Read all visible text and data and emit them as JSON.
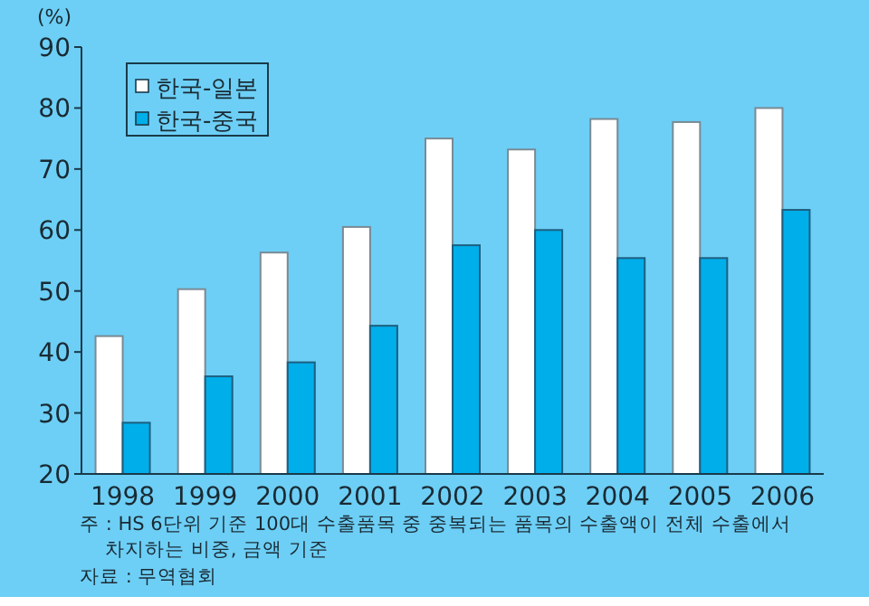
{
  "chart_data": {
    "type": "bar",
    "ylabel": "(%)",
    "categories": [
      "1998",
      "1999",
      "2000",
      "2001",
      "2002",
      "2003",
      "2004",
      "2005",
      "2006"
    ],
    "series": [
      {
        "name": "한국-일본",
        "color": "#ffffff",
        "values": [
          42.6,
          50.3,
          56.3,
          60.5,
          75,
          73.2,
          78.2,
          77.7,
          80
        ]
      },
      {
        "name": "한국-중국",
        "color": "#00aeea",
        "values": [
          28.4,
          36,
          38.3,
          44.3,
          57.5,
          60,
          55.4,
          55.4,
          63.3
        ]
      }
    ],
    "ylim": [
      20,
      90
    ],
    "yticks": [
      20,
      30,
      40,
      50,
      60,
      70,
      80,
      90
    ],
    "grid": false,
    "legend": "top left",
    "annotations": [
      "주 : HS 6단위 기준 100대 수출품목 중 중복되는 품목의 수출액이 전체 수출에서 차지하는 비중, 금액 기준",
      "자료 : 무역협회"
    ]
  }
}
